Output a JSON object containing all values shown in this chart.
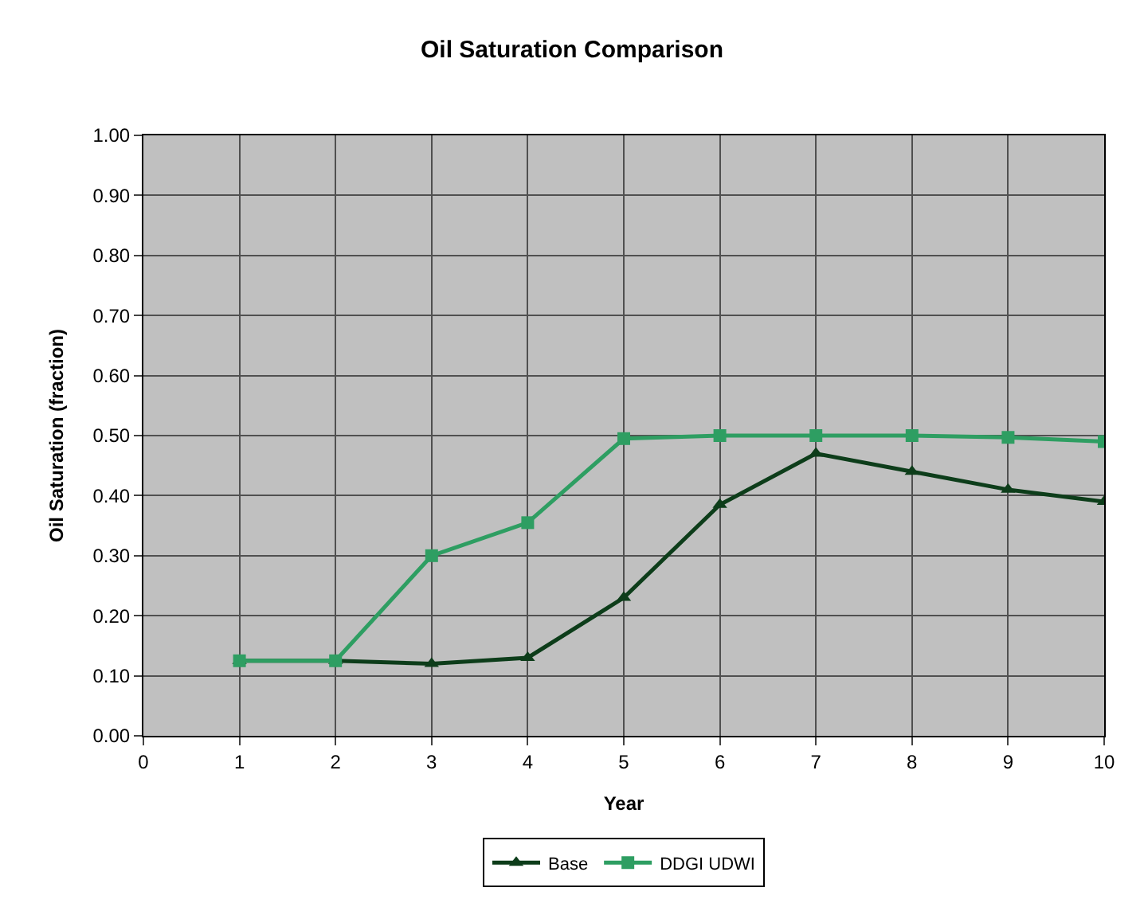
{
  "chart_data": {
    "type": "line",
    "title": "Oil Saturation Comparison",
    "xlabel": "Year",
    "ylabel": "Oil Saturation (fraction)",
    "x": [
      1,
      2,
      3,
      4,
      5,
      6,
      7,
      8,
      9,
      10
    ],
    "series": [
      {
        "name": "Base",
        "color": "#0d3d1a",
        "marker": "triangle",
        "values": [
          0.125,
          0.125,
          0.12,
          0.13,
          0.23,
          0.385,
          0.47,
          0.44,
          0.41,
          0.39
        ]
      },
      {
        "name": "DDGI UDWI",
        "color": "#2e9e62",
        "marker": "square",
        "values": [
          0.125,
          0.125,
          0.3,
          0.355,
          0.495,
          0.5,
          0.5,
          0.5,
          0.497,
          0.49
        ]
      }
    ],
    "xlim": [
      0,
      10
    ],
    "xticks": [
      0,
      1,
      2,
      3,
      4,
      5,
      6,
      7,
      8,
      9,
      10
    ],
    "ylim": [
      0,
      1
    ],
    "yticks": [
      {
        "value": 0,
        "label": "0.00"
      },
      {
        "value": 0.1,
        "label": "0.10"
      },
      {
        "value": 0.2,
        "label": "0.20"
      },
      {
        "value": 0.3,
        "label": "0.30"
      },
      {
        "value": 0.4,
        "label": "0.40"
      },
      {
        "value": 0.5,
        "label": "0.50"
      },
      {
        "value": 0.6,
        "label": "0.60"
      },
      {
        "value": 0.7,
        "label": "0.70"
      },
      {
        "value": 0.8,
        "label": "0.80"
      },
      {
        "value": 0.9,
        "label": "0.90"
      },
      {
        "value": 1,
        "label": "1.00"
      }
    ],
    "grid": true,
    "legend": "bottom",
    "line_style": "solid"
  }
}
